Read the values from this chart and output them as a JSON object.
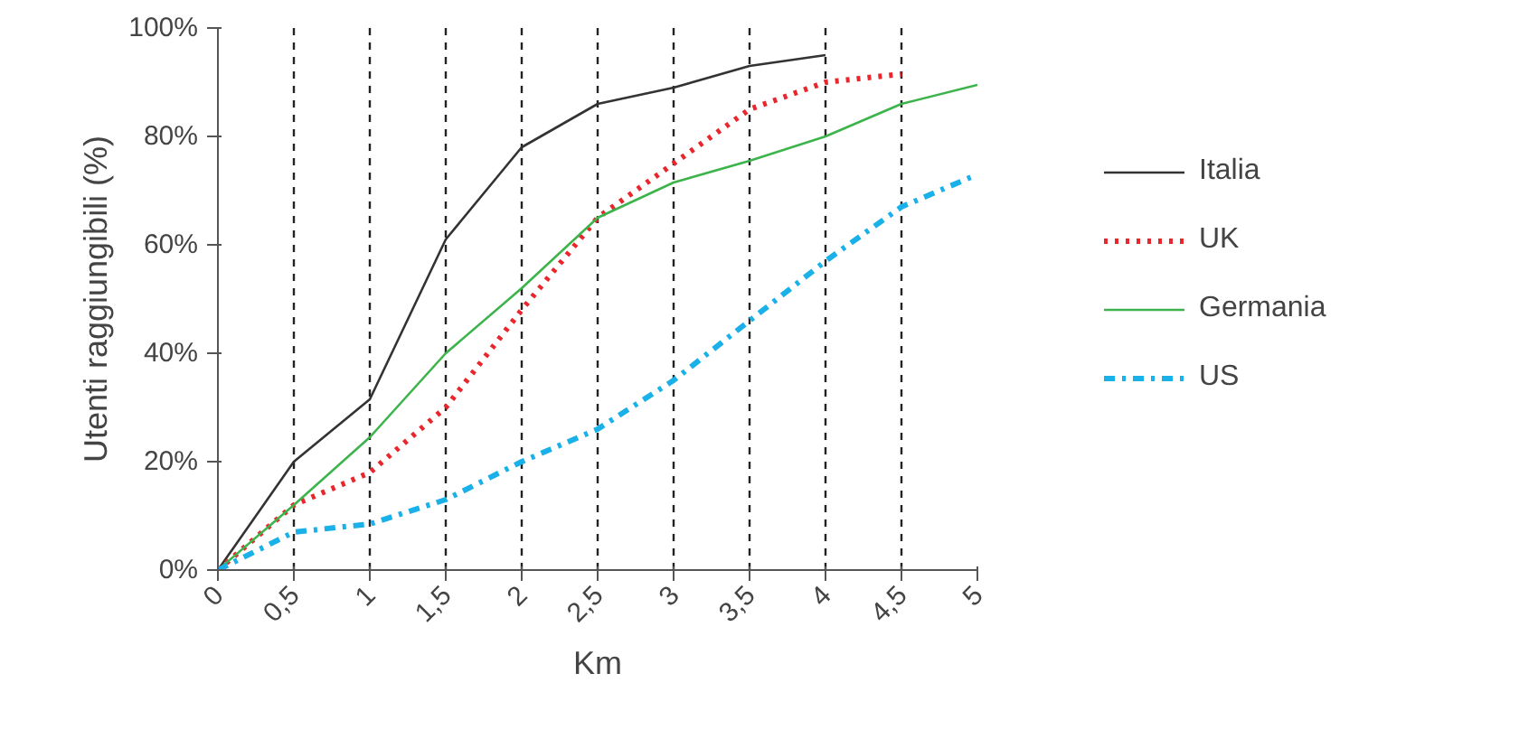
{
  "chart_data": {
    "type": "line",
    "ylabel": "Utenti raggiungibili (%)",
    "xlabel": "Km",
    "x": [
      0,
      0.5,
      1,
      1.5,
      2,
      2.5,
      3,
      3.5,
      4,
      4.5,
      5
    ],
    "series": [
      {
        "name": "Italia",
        "color": "#333333",
        "line_style": "solid",
        "values": [
          0,
          20,
          31.5,
          61,
          78,
          86,
          89,
          93,
          95,
          null,
          null
        ]
      },
      {
        "name": "UK",
        "color": "#e8262c",
        "line_style": "dotted",
        "values": [
          0,
          12,
          18,
          30,
          48,
          65,
          75,
          85,
          90,
          91.5,
          null
        ]
      },
      {
        "name": "Germania",
        "color": "#3cb44b",
        "line_style": "solid",
        "values": [
          0,
          12,
          24.5,
          40,
          52,
          65,
          71.5,
          75.5,
          80,
          86,
          89.5
        ]
      },
      {
        "name": "US",
        "color": "#1ab0e8",
        "line_style": "dashdot",
        "values": [
          0,
          7,
          8.5,
          13,
          20,
          26,
          35,
          46,
          57,
          67,
          73
        ]
      }
    ],
    "xlim": [
      0,
      5
    ],
    "ylim": [
      0,
      100
    ],
    "xticks": [
      0,
      {
        "value": 0.5,
        "label": "0,5"
      },
      1,
      {
        "value": 1.5,
        "label": "1,5"
      },
      2,
      {
        "value": 2.5,
        "label": "2,5"
      },
      3,
      {
        "value": 3.5,
        "label": "3,5"
      },
      4,
      {
        "value": 4.5,
        "label": "4,5"
      },
      5
    ],
    "yticks": [
      {
        "value": 0,
        "label": "0%"
      },
      {
        "value": 20,
        "label": "20%"
      },
      {
        "value": 40,
        "label": "40%"
      },
      {
        "value": 60,
        "label": "60%"
      },
      {
        "value": 80,
        "label": "80%"
      },
      {
        "value": 100,
        "label": "100%"
      }
    ],
    "grid": "x",
    "legend": "right",
    "marker": "none"
  }
}
